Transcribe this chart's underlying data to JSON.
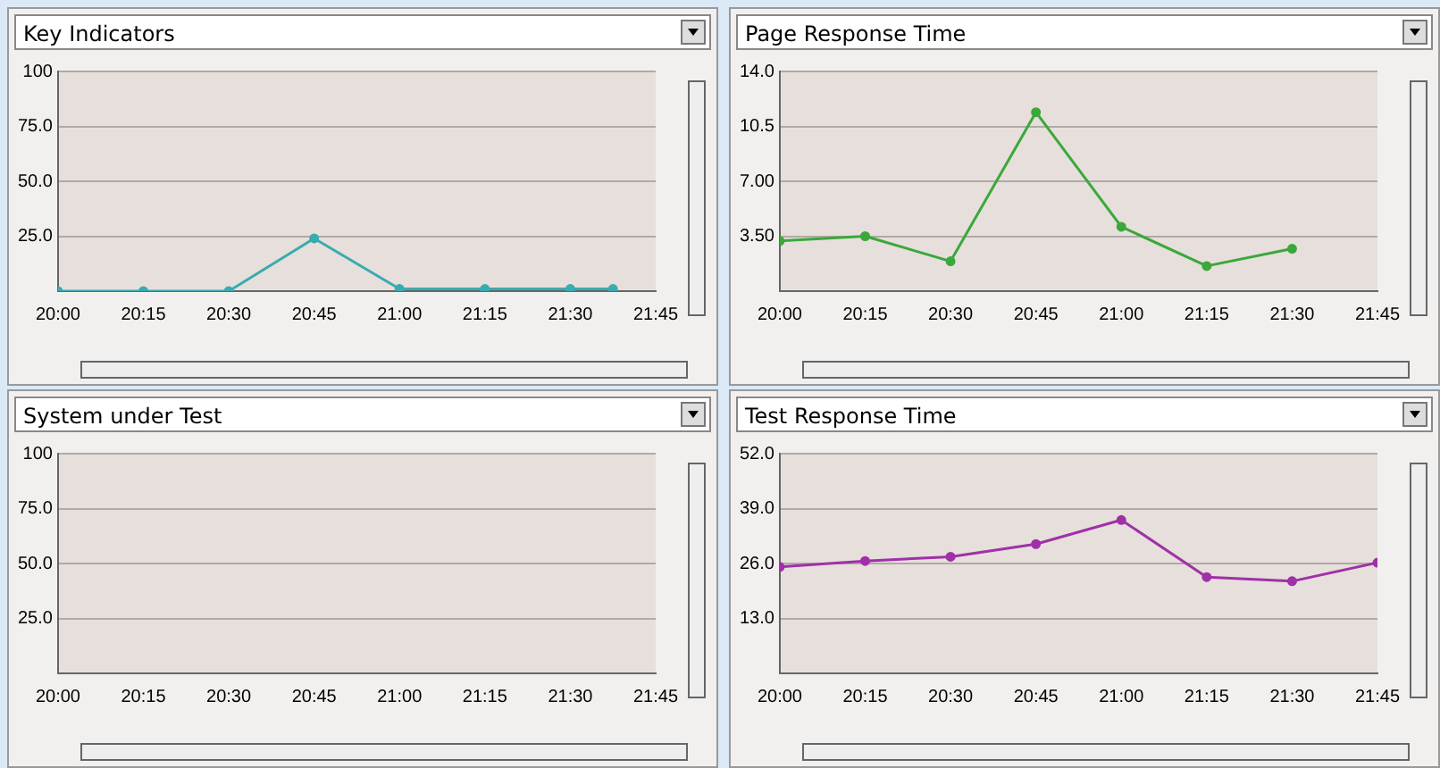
{
  "chart_data": [
    {
      "type": "line",
      "title": "Key Indicators",
      "x": [
        20,
        20.25,
        20.5,
        20.75,
        21,
        21.25,
        21.5,
        21.625
      ],
      "series": [
        {
          "color": "#3aabb0",
          "values": [
            0,
            0,
            0,
            24,
            1,
            1,
            1,
            1
          ]
        }
      ],
      "xlim": [
        20,
        21.75
      ],
      "xticks": [
        {
          "value": 20,
          "label": "20:00"
        },
        {
          "value": 20.25,
          "label": "20:15"
        },
        {
          "value": 20.5,
          "label": "20:30"
        },
        {
          "value": 20.75,
          "label": "20:45"
        },
        {
          "value": 21,
          "label": "21:00"
        },
        {
          "value": 21.25,
          "label": "21:15"
        },
        {
          "value": 21.5,
          "label": "21:30"
        },
        {
          "value": 21.75,
          "label": "21:45"
        }
      ],
      "ylim": [
        0,
        100
      ],
      "yticks": [
        {
          "value": 25,
          "label": "25.0"
        },
        {
          "value": 50,
          "label": "50.0"
        },
        {
          "value": 75,
          "label": "75.0"
        },
        {
          "value": 100,
          "label": "100"
        }
      ],
      "grid": "y",
      "marker": "circle",
      "line_style": "solid"
    },
    {
      "type": "line",
      "title": "Page Response Time",
      "x": [
        20,
        20.25,
        20.5,
        20.75,
        21,
        21.25,
        21.5
      ],
      "series": [
        {
          "color": "#3aa83a",
          "values": [
            3.2,
            3.5,
            1.9,
            11.4,
            4.1,
            1.6,
            2.7
          ]
        }
      ],
      "xlim": [
        20,
        21.75
      ],
      "xticks": [
        {
          "value": 20,
          "label": "20:00"
        },
        {
          "value": 20.25,
          "label": "20:15"
        },
        {
          "value": 20.5,
          "label": "20:30"
        },
        {
          "value": 20.75,
          "label": "20:45"
        },
        {
          "value": 21,
          "label": "21:00"
        },
        {
          "value": 21.25,
          "label": "21:15"
        },
        {
          "value": 21.5,
          "label": "21:30"
        },
        {
          "value": 21.75,
          "label": "21:45"
        }
      ],
      "ylim": [
        0,
        14
      ],
      "yticks": [
        {
          "value": 3.5,
          "label": "3.50"
        },
        {
          "value": 7,
          "label": "7.00"
        },
        {
          "value": 10.5,
          "label": "10.5"
        },
        {
          "value": 14,
          "label": "14.0"
        }
      ],
      "grid": "y",
      "marker": "circle",
      "line_style": "solid"
    },
    {
      "type": "line",
      "title": "System under Test",
      "xlim": [
        20,
        21.75
      ],
      "xticks": [
        {
          "value": 20,
          "label": "20:00"
        },
        {
          "value": 20.25,
          "label": "20:15"
        },
        {
          "value": 20.5,
          "label": "20:30"
        },
        {
          "value": 20.75,
          "label": "20:45"
        },
        {
          "value": 21,
          "label": "21:00"
        },
        {
          "value": 21.25,
          "label": "21:15"
        },
        {
          "value": 21.5,
          "label": "21:30"
        },
        {
          "value": 21.75,
          "label": "21:45"
        }
      ],
      "ylim": [
        0,
        100
      ],
      "yticks": [
        {
          "value": 25,
          "label": "25.0"
        },
        {
          "value": 50,
          "label": "50.0"
        },
        {
          "value": 75,
          "label": "75.0"
        },
        {
          "value": 100,
          "label": "100"
        }
      ],
      "grid": "y"
    },
    {
      "type": "line",
      "title": "Test Response Time",
      "x": [
        20,
        20.25,
        20.5,
        20.75,
        21,
        21.25,
        21.5,
        21.75
      ],
      "series": [
        {
          "color": "#a030a8",
          "values": [
            25.2,
            26.6,
            27.6,
            30.6,
            36.3,
            22.8,
            21.8,
            26.2
          ]
        }
      ],
      "xlim": [
        20,
        21.75
      ],
      "xticks": [
        {
          "value": 20,
          "label": "20:00"
        },
        {
          "value": 20.25,
          "label": "20:15"
        },
        {
          "value": 20.5,
          "label": "20:30"
        },
        {
          "value": 20.75,
          "label": "20:45"
        },
        {
          "value": 21,
          "label": "21:00"
        },
        {
          "value": 21.25,
          "label": "21:15"
        },
        {
          "value": 21.5,
          "label": "21:30"
        },
        {
          "value": 21.75,
          "label": "21:45"
        }
      ],
      "ylim": [
        0,
        52
      ],
      "yticks": [
        {
          "value": 13,
          "label": "13.0"
        },
        {
          "value": 26,
          "label": "26.0"
        },
        {
          "value": 39,
          "label": "39.0"
        },
        {
          "value": 52,
          "label": "52.0"
        }
      ],
      "grid": "y",
      "marker": "circle",
      "line_style": "solid"
    }
  ]
}
